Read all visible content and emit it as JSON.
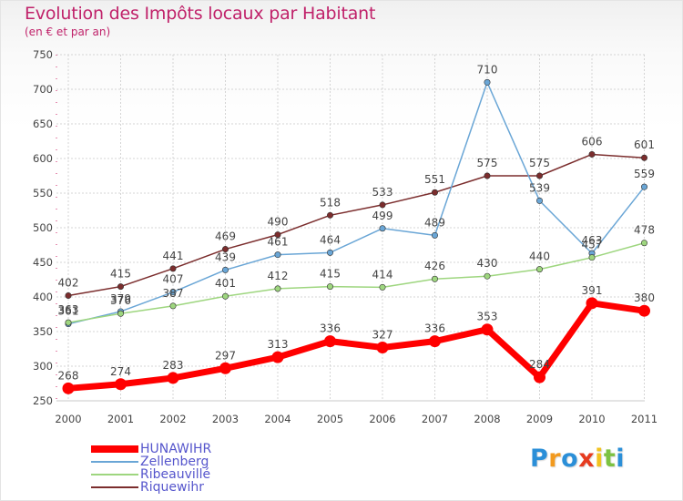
{
  "title": "Evolution des Impôts locaux par Habitant",
  "subtitle": "(en € et par an)",
  "logo": {
    "text": "Proxiti",
    "colors": [
      "#2b8fd8",
      "#f29a1f",
      "#2b8fd8",
      "#e63b1f",
      "#f2c31f",
      "#7cc242",
      "#2b8fd8"
    ]
  },
  "chart_data": {
    "type": "line",
    "x": [
      "2000",
      "2001",
      "2002",
      "2003",
      "2004",
      "2005",
      "2006",
      "2007",
      "2008",
      "2009",
      "2010",
      "2011"
    ],
    "ylim": [
      250,
      750
    ],
    "yticks": [
      250,
      300,
      350,
      400,
      450,
      500,
      550,
      600,
      650,
      700,
      750
    ],
    "grid": true,
    "legend": "bottom-left",
    "series": [
      {
        "name": "Riquewihr",
        "color": "#7b2d2d",
        "values": [
          402,
          415,
          441,
          469,
          490,
          518,
          533,
          551,
          575,
          575,
          606,
          601
        ]
      },
      {
        "name": "Zellenberg",
        "color": "#6aa6d6",
        "values": [
          361,
          379,
          407,
          439,
          461,
          464,
          499,
          489,
          710,
          539,
          463,
          559
        ]
      },
      {
        "name": "Ribeauvillé",
        "color": "#9ed67f",
        "values": [
          363,
          376,
          387,
          401,
          412,
          415,
          414,
          426,
          430,
          440,
          457,
          478
        ]
      },
      {
        "name": "HUNAWIHR",
        "color": "#ff0000",
        "values": [
          268,
          274,
          283,
          297,
          313,
          336,
          327,
          336,
          353,
          284,
          391,
          380
        ]
      }
    ],
    "legend_order": [
      "HUNAWIHR",
      "Zellenberg",
      "Ribeauvillé",
      "Riquewihr"
    ]
  }
}
